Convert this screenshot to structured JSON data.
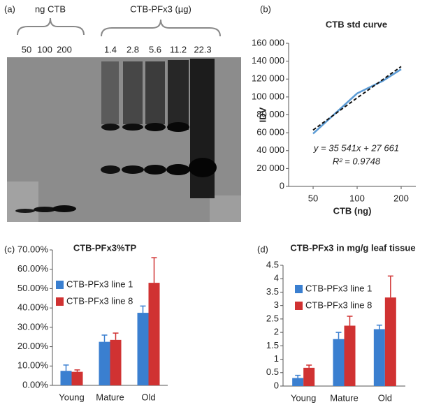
{
  "blot": {
    "panel_label": "(a)",
    "group_labels": [
      "ng CTB",
      "CTB-PFx3 (µg)"
    ],
    "ctb_amounts": [
      50,
      100,
      200
    ],
    "pfx_amounts": [
      1.4,
      2.8,
      5.6,
      11.2,
      22.3
    ]
  },
  "chart_data": [
    {
      "type": "line",
      "panel_label": "(b)",
      "title": "CTB std curve",
      "xlabel": "CTB (ng)",
      "ylabel": "IDV",
      "log_x": true,
      "xlim": [
        34,
        252
      ],
      "xticks": [
        50,
        100,
        200
      ],
      "ylim": [
        0,
        160000
      ],
      "yticks": [
        {
          "value": 0,
          "label": "0"
        },
        {
          "value": 20000,
          "label": "20 000"
        },
        {
          "value": 40000,
          "label": "40 000"
        },
        {
          "value": 60000,
          "label": "60 000"
        },
        {
          "value": 80000,
          "label": "80 000"
        },
        {
          "value": 100000,
          "label": "100 000"
        },
        {
          "value": 120000,
          "label": "120 000"
        },
        {
          "value": 140000,
          "label": "140 000"
        },
        {
          "value": 160000,
          "label": "160 000"
        }
      ],
      "series": [
        {
          "color": "#5b9bd5",
          "x": [
            50,
            100,
            150,
            200
          ],
          "values": [
            59000,
            104000,
            118000,
            131000
          ]
        },
        {
          "color": "#111111",
          "dashed": true,
          "x": [
            50,
            100,
            200
          ],
          "values": [
            63000,
            99000,
            134000
          ]
        }
      ],
      "annotations": [
        "y = 35 541x + 27 661",
        "R² = 0.9748"
      ],
      "grid": false
    },
    {
      "type": "bar",
      "panel_label": "(c)",
      "title": "CTB-PFx3%TP",
      "categories": [
        "Young",
        "Mature",
        "Old"
      ],
      "ylim": [
        0,
        70
      ],
      "yticks": [
        {
          "value": 0,
          "label": "0.00%"
        },
        {
          "value": 10,
          "label": "10.00%"
        },
        {
          "value": 20,
          "label": "20.00%"
        },
        {
          "value": 30,
          "label": "30.00%"
        },
        {
          "value": 40,
          "label": "40.00%"
        },
        {
          "value": 50,
          "label": "50.00%"
        },
        {
          "value": 60,
          "label": "60.00%"
        },
        {
          "value": 70,
          "label": "70.00%"
        }
      ],
      "series": [
        {
          "name": "CTB-PFx3 line 1",
          "color": "#3a7fd0",
          "values": [
            7.5,
            22.5,
            37.5
          ],
          "errors": [
            3,
            3.5,
            3.5
          ]
        },
        {
          "name": "CTB-PFx3 line 8",
          "color": "#d03232",
          "values": [
            7,
            23.5,
            53
          ],
          "errors": [
            1,
            3.5,
            13
          ]
        }
      ],
      "legend": "upper left",
      "grid": false
    },
    {
      "type": "bar",
      "panel_label": "(d)",
      "title": "CTB-PFx3 in mg/g leaf tissue",
      "categories": [
        "Young",
        "Mature",
        "Old"
      ],
      "ylim": [
        0,
        4.5
      ],
      "yticks": [
        0,
        0.5,
        1,
        1.5,
        2,
        2.5,
        3,
        3.5,
        4,
        4.5
      ],
      "series": [
        {
          "name": "CTB-PFx3 line 1",
          "color": "#3a7fd0",
          "values": [
            0.3,
            1.75,
            2.12
          ],
          "errors": [
            0.1,
            0.25,
            0.15
          ]
        },
        {
          "name": "CTB-PFx3 line 8",
          "color": "#d03232",
          "values": [
            0.68,
            2.25,
            3.3
          ],
          "errors": [
            0.1,
            0.35,
            0.8
          ]
        }
      ],
      "legend": "upper left",
      "grid": false
    }
  ]
}
